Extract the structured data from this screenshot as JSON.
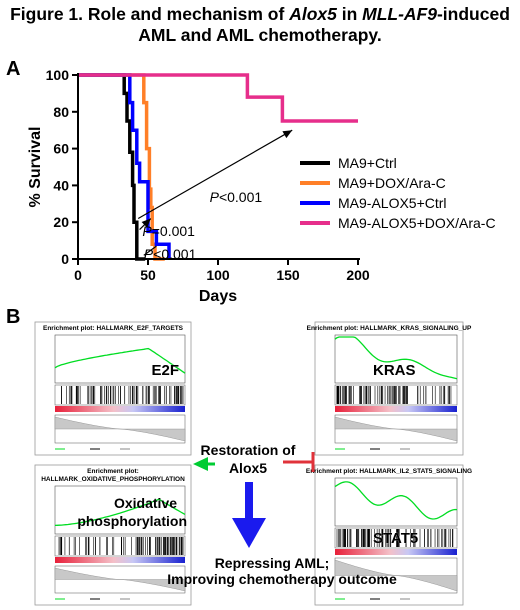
{
  "figure": {
    "title_parts": [
      "Figure 1. Role and mechanism of ",
      "Alox5",
      " in ",
      "MLL-AF9",
      "-induced"
    ],
    "title_line2": "AML and AML chemotherapy.",
    "panel_a_label": "A",
    "panel_b_label": "B"
  },
  "chart_data": {
    "type": "line",
    "step": true,
    "xlabel": "Days",
    "ylabel": "% Survival",
    "xlim": [
      0,
      200
    ],
    "ylim": [
      0,
      100
    ],
    "xticks": [
      0,
      50,
      100,
      150,
      200
    ],
    "yticks": [
      0,
      20,
      40,
      60,
      80,
      100
    ],
    "legend_position": "right",
    "series": [
      {
        "name": "MA9+Ctrl",
        "color": "#000000",
        "points": [
          [
            0,
            100
          ],
          [
            33,
            100
          ],
          [
            33,
            90
          ],
          [
            35,
            90
          ],
          [
            35,
            75
          ],
          [
            37,
            75
          ],
          [
            37,
            58
          ],
          [
            39,
            58
          ],
          [
            39,
            40
          ],
          [
            40,
            40
          ],
          [
            40,
            20
          ],
          [
            42,
            20
          ],
          [
            42,
            0
          ],
          [
            48,
            0
          ]
        ]
      },
      {
        "name": "MA9+DOX/Ara-C",
        "color": "#ff7f27",
        "points": [
          [
            0,
            100
          ],
          [
            47,
            100
          ],
          [
            47,
            85
          ],
          [
            49,
            85
          ],
          [
            49,
            60
          ],
          [
            51,
            60
          ],
          [
            51,
            38
          ],
          [
            52,
            38
          ],
          [
            52,
            28
          ],
          [
            53,
            28
          ],
          [
            53,
            8
          ],
          [
            55,
            8
          ],
          [
            55,
            0
          ],
          [
            62,
            0
          ]
        ]
      },
      {
        "name": "MA9-ALOX5+Ctrl",
        "color": "#0000ff",
        "points": [
          [
            0,
            100
          ],
          [
            37,
            100
          ],
          [
            37,
            85
          ],
          [
            39,
            85
          ],
          [
            39,
            70
          ],
          [
            42,
            70
          ],
          [
            42,
            52
          ],
          [
            44,
            52
          ],
          [
            44,
            42
          ],
          [
            50,
            42
          ],
          [
            50,
            15
          ],
          [
            56,
            15
          ],
          [
            56,
            8
          ],
          [
            65,
            8
          ],
          [
            65,
            0
          ]
        ]
      },
      {
        "name": "MA9-ALOX5+DOX/Ara-C",
        "color": "#e62e8b",
        "points": [
          [
            0,
            100
          ],
          [
            121,
            100
          ],
          [
            121,
            88
          ],
          [
            146,
            88
          ],
          [
            146,
            75
          ],
          [
            200,
            75
          ]
        ]
      }
    ],
    "annotations": [
      "P<0.001",
      "P=0.001",
      "P<0.001"
    ]
  },
  "panel_b": {
    "center_text": [
      "Restoration of",
      "Alox5"
    ],
    "bottom_text": [
      "Repressing AML;",
      "Improving chemotherapy outcome"
    ],
    "gsea_plots": [
      {
        "title": "Enrichment plot: HALLMARK_E2F_TARGETS",
        "label": "E2F",
        "shape": "e2f"
      },
      {
        "title": "Enrichment plot: HALLMARK_KRAS_SIGNALING_UP",
        "label": "KRAS",
        "shape": "kras"
      },
      {
        "title": "Enrichment plot:",
        "title2": "HALLMARK_OXIDATIVE_PHOSPHORYLATION",
        "label": "Oxidative",
        "label2": "phosphorylation",
        "shape": "oxphos"
      },
      {
        "title": "Enrichment plot: HALLMARK_IL2_STAT5_SIGNALING",
        "label": "STAT5",
        "shape": "stat5"
      }
    ],
    "colors": {
      "green": "#00cc33",
      "red": "#e0323a",
      "blue": "#1a1aee"
    }
  }
}
